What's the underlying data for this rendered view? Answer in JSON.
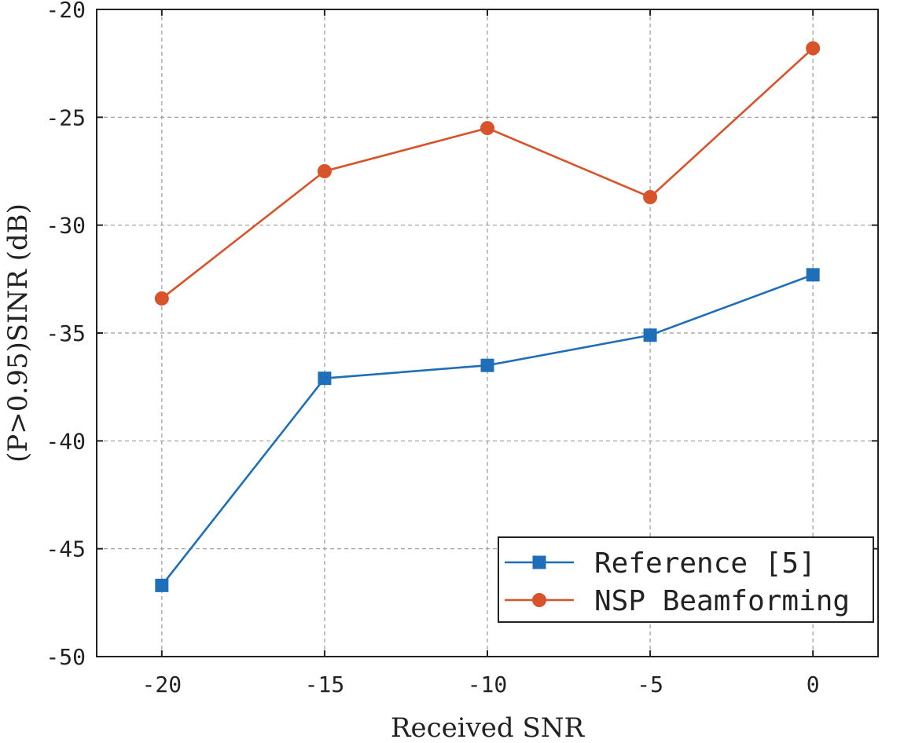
{
  "chart_data": {
    "type": "line",
    "title": "",
    "xlabel": "Received SNR",
    "ylabel": "(P>0.95)SINR (dB)",
    "x": [
      -20,
      -15,
      -10,
      -5,
      0
    ],
    "xticks": [
      -20,
      -15,
      -10,
      -5,
      0
    ],
    "xtick_labels": [
      "-20",
      "-15",
      "-10",
      "-5",
      "0"
    ],
    "yticks": [
      -50,
      -45,
      -40,
      -35,
      -30,
      -25,
      -20
    ],
    "ytick_labels": [
      "-50",
      "-45",
      "-40",
      "-35",
      "-30",
      "-25",
      "-20"
    ],
    "xlim": [
      -22,
      2
    ],
    "ylim": [
      -50,
      -20
    ],
    "grid": true,
    "legend_position": "bottom-right",
    "series": [
      {
        "name": "Reference [5]",
        "marker": "square",
        "color": "#1f6fb8",
        "values": [
          -46.7,
          -37.1,
          -36.5,
          -35.1,
          -32.3
        ]
      },
      {
        "name": "NSP Beamforming",
        "marker": "circle",
        "color": "#d9532a",
        "values": [
          -33.4,
          -27.5,
          -25.5,
          -28.7,
          -21.8
        ]
      }
    ]
  }
}
